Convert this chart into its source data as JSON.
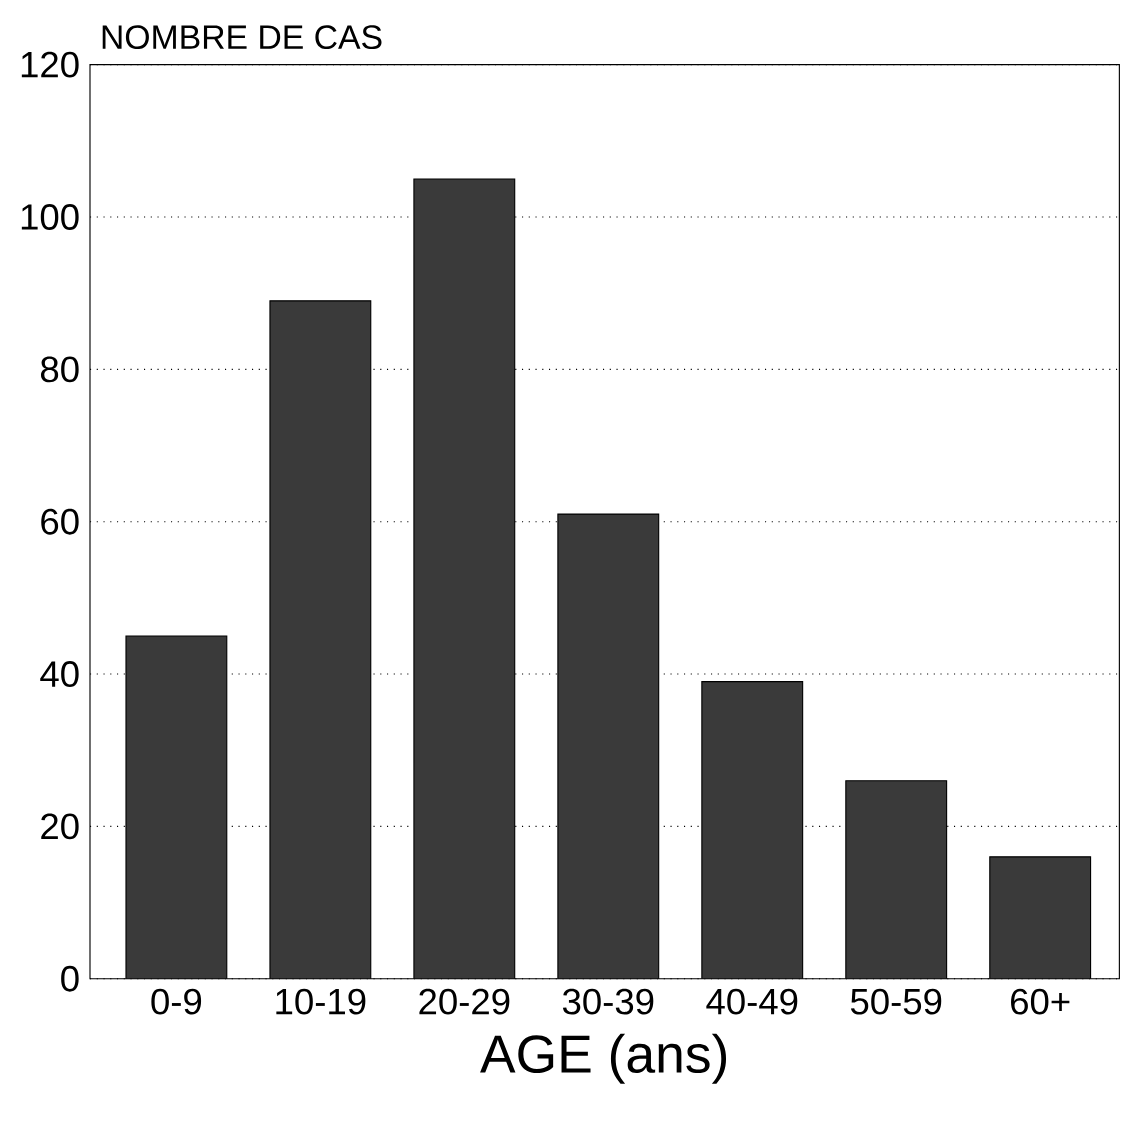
{
  "chart_data": {
    "type": "bar",
    "ylabel": "NOMBRE DE CAS",
    "xlabel": "AGE (ans)",
    "categories": [
      "0-9",
      "10-19",
      "20-29",
      "30-39",
      "40-49",
      "50-59",
      "60+"
    ],
    "values": [
      45,
      89,
      105,
      61,
      39,
      26,
      16
    ],
    "color": "#3a3a3a",
    "ylim": [
      0,
      120
    ],
    "yticks": [
      0,
      20,
      40,
      60,
      80,
      100,
      120
    ],
    "grid": "y"
  }
}
